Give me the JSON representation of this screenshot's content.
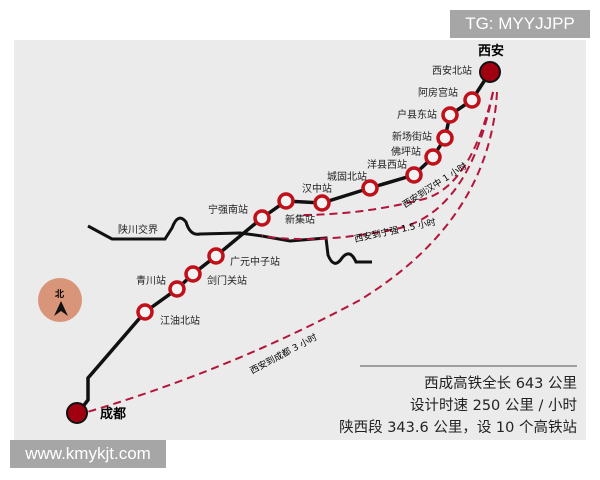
{
  "badge": "TG: MYYJJPP",
  "watermark": "www.kmykjt.com",
  "colors": {
    "background": "#ebebeb",
    "line": "#111111",
    "station_ring": "#c0101a",
    "terminal": "#a00010",
    "dash": "#b3163a",
    "compass": "#d9957a"
  },
  "terminals": {
    "start": "西安",
    "end": "成都"
  },
  "stations": [
    "西安北站",
    "阿房宫站",
    "户县东站",
    "新场街站",
    "佛坪站",
    "洋县西站",
    "城固北站",
    "汉中站",
    "新集站",
    "宁强南站",
    "广元中子站",
    "剑门关站",
    "青川站",
    "江油北站"
  ],
  "border_label": "陕川交界",
  "compass_label": "北",
  "compass_icon": "north-arrow-icon",
  "routes": [
    "西安到汉中 1 小时",
    "西安到宁强 1.5 小时",
    "西安到成都 3 小时"
  ],
  "info": [
    "西成高铁全长 643 公里",
    "设计时速 250 公里 / 小时",
    "陕西段 343.6 公里，设 10 个高铁站"
  ]
}
